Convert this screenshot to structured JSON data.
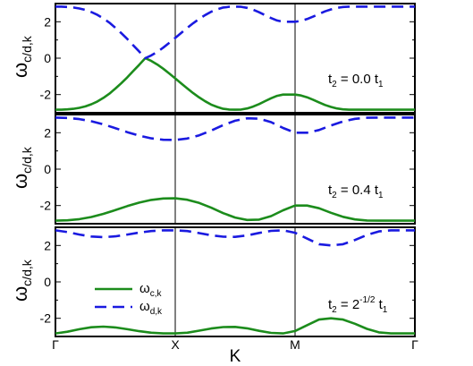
{
  "chart_data": [
    {
      "type": "line",
      "panel": "top",
      "ylabel": {
        "main": "ω",
        "sub": "c/d,k"
      },
      "annotation": {
        "lead": "t",
        "lead_sub": "2",
        "mid": " = 0.0 t",
        "tail_sub": "1",
        "tail_sup": ""
      },
      "ylim": [
        -2.9,
        2.9
      ],
      "yticks": [
        -2,
        0,
        2
      ],
      "xtick_labels": [
        "Γ",
        "X",
        "M",
        "Γ"
      ],
      "series": [
        {
          "color": "#1c8c1c",
          "dash": "solid",
          "x": [
            0,
            0.05,
            0.1,
            0.15,
            0.2,
            0.25,
            0.3,
            0.35,
            0.4,
            0.45,
            0.5,
            0.55,
            0.6,
            0.65,
            0.7,
            0.75,
            0.8,
            0.85,
            0.9,
            0.95,
            1.0,
            1.05,
            1.1,
            1.15,
            1.2,
            1.25,
            1.3,
            1.35,
            1.4,
            1.45,
            1.5,
            1.55,
            1.6,
            1.65,
            1.7,
            1.75,
            1.8,
            1.85,
            1.9,
            1.95,
            2.0,
            2.05,
            2.1,
            2.15,
            2.2,
            2.25,
            2.3,
            2.35,
            2.4,
            2.45,
            2.5,
            2.55,
            2.6,
            2.65,
            2.7,
            2.75,
            2.8,
            2.85,
            2.9,
            2.95,
            3.0
          ],
          "y": [
            -2.83,
            -2.83,
            -2.81,
            -2.78,
            -2.73,
            -2.65,
            -2.53,
            -2.38,
            -2.18,
            -1.95,
            -1.67,
            -1.37,
            -1.05,
            -0.7,
            -0.36,
            0,
            -0.15,
            -0.35,
            -0.58,
            -0.84,
            -1.11,
            -1.39,
            -1.66,
            -1.92,
            -2.16,
            -2.37,
            -2.55,
            -2.68,
            -2.78,
            -2.82,
            -2.83,
            -2.82,
            -2.76,
            -2.66,
            -2.52,
            -2.36,
            -2.2,
            -2.07,
            -2.0,
            -2.0,
            -2.0,
            -2.05,
            -2.15,
            -2.28,
            -2.43,
            -2.57,
            -2.68,
            -2.76,
            -2.81,
            -2.83,
            -2.83,
            -2.83,
            -2.83,
            -2.83,
            -2.83,
            -2.83,
            -2.83,
            -2.83,
            -2.83,
            -2.83,
            -2.83
          ]
        },
        {
          "color": "#1a1ae0",
          "dash": "dashed",
          "x": [
            0,
            0.05,
            0.1,
            0.15,
            0.2,
            0.25,
            0.3,
            0.35,
            0.4,
            0.45,
            0.5,
            0.55,
            0.6,
            0.65,
            0.7,
            0.75,
            0.8,
            0.85,
            0.9,
            0.95,
            1.0,
            1.05,
            1.1,
            1.15,
            1.2,
            1.25,
            1.3,
            1.35,
            1.4,
            1.45,
            1.5,
            1.55,
            1.6,
            1.65,
            1.7,
            1.75,
            1.8,
            1.85,
            1.9,
            1.95,
            2.0,
            2.05,
            2.1,
            2.15,
            2.2,
            2.25,
            2.3,
            2.35,
            2.4,
            2.45,
            2.5,
            2.55,
            2.6,
            2.65,
            2.7,
            2.75,
            2.8,
            2.85,
            2.9,
            2.95,
            3.0
          ],
          "y": [
            2.83,
            2.83,
            2.81,
            2.78,
            2.73,
            2.65,
            2.53,
            2.38,
            2.18,
            1.95,
            1.67,
            1.37,
            1.05,
            0.7,
            0.36,
            0,
            0.15,
            0.35,
            0.58,
            0.84,
            1.11,
            1.39,
            1.66,
            1.92,
            2.16,
            2.37,
            2.55,
            2.68,
            2.78,
            2.82,
            2.83,
            2.82,
            2.76,
            2.66,
            2.52,
            2.36,
            2.2,
            2.07,
            2.0,
            2.0,
            2.0,
            2.05,
            2.15,
            2.28,
            2.43,
            2.57,
            2.68,
            2.76,
            2.81,
            2.83,
            2.83,
            2.83,
            2.83,
            2.83,
            2.83,
            2.83,
            2.83,
            2.83,
            2.83,
            2.83,
            2.83
          ]
        }
      ]
    },
    {
      "type": "line",
      "panel": "middle",
      "ylabel": {
        "main": "ω",
        "sub": "c/d,k"
      },
      "annotation": {
        "lead": "t",
        "lead_sub": "2",
        "mid": " = 0.4 t",
        "tail_sub": "1",
        "tail_sup": ""
      },
      "ylim": [
        -2.9,
        2.9
      ],
      "yticks": [
        -2,
        0,
        2
      ],
      "xtick_labels": [
        "Γ",
        "X",
        "M",
        "Γ"
      ],
      "series": [
        {
          "color": "#1c8c1c",
          "dash": "solid",
          "x": [
            0,
            0.1,
            0.2,
            0.3,
            0.4,
            0.5,
            0.6,
            0.7,
            0.8,
            0.9,
            1.0,
            1.1,
            1.2,
            1.3,
            1.4,
            1.5,
            1.6,
            1.7,
            1.8,
            1.9,
            2.0,
            2.1,
            2.2,
            2.3,
            2.4,
            2.5,
            2.6,
            2.7,
            2.8,
            2.9,
            3.0
          ],
          "y": [
            -2.83,
            -2.81,
            -2.75,
            -2.63,
            -2.46,
            -2.25,
            -2.03,
            -1.84,
            -1.69,
            -1.61,
            -1.6,
            -1.68,
            -1.86,
            -2.12,
            -2.42,
            -2.66,
            -2.79,
            -2.77,
            -2.58,
            -2.26,
            -2.0,
            -2.0,
            -2.15,
            -2.4,
            -2.62,
            -2.76,
            -2.82,
            -2.83,
            -2.83,
            -2.83,
            -2.83
          ]
        },
        {
          "color": "#1a1ae0",
          "dash": "dashed",
          "x": [
            0,
            0.1,
            0.2,
            0.3,
            0.4,
            0.5,
            0.6,
            0.7,
            0.8,
            0.9,
            1.0,
            1.1,
            1.2,
            1.3,
            1.4,
            1.5,
            1.6,
            1.7,
            1.8,
            1.9,
            2.0,
            2.1,
            2.2,
            2.3,
            2.4,
            2.5,
            2.6,
            2.7,
            2.8,
            2.9,
            3.0
          ],
          "y": [
            2.83,
            2.81,
            2.75,
            2.63,
            2.46,
            2.25,
            2.03,
            1.84,
            1.69,
            1.61,
            1.6,
            1.68,
            1.86,
            2.12,
            2.42,
            2.66,
            2.79,
            2.77,
            2.58,
            2.26,
            2.0,
            2.0,
            2.15,
            2.4,
            2.62,
            2.76,
            2.82,
            2.83,
            2.83,
            2.83,
            2.83
          ]
        }
      ]
    },
    {
      "type": "line",
      "panel": "bottom",
      "ylabel": {
        "main": "ω",
        "sub": "c/d,k"
      },
      "annotation": {
        "lead": "t",
        "lead_sub": "2",
        "mid": " = 2",
        "tail_sub": "1",
        "tail_sup": "-1/2",
        "mid2": " t"
      },
      "ylim": [
        -2.9,
        2.9
      ],
      "yticks": [
        -2,
        0,
        2
      ],
      "xtick_labels": [
        "Γ",
        "X",
        "M",
        "Γ"
      ],
      "legend": {
        "position": "lower-left",
        "entries": [
          {
            "main": "ω",
            "sub": "c,k",
            "color": "#1c8c1c",
            "dash": "solid"
          },
          {
            "main": "ω",
            "sub": "d,k",
            "color": "#1a1ae0",
            "dash": "dashed"
          }
        ]
      },
      "series": [
        {
          "color": "#1c8c1c",
          "dash": "solid",
          "x": [
            0,
            0.1,
            0.2,
            0.3,
            0.4,
            0.5,
            0.6,
            0.7,
            0.8,
            0.9,
            1.0,
            1.1,
            1.2,
            1.3,
            1.4,
            1.5,
            1.6,
            1.7,
            1.8,
            1.9,
            2.0,
            2.1,
            2.2,
            2.3,
            2.4,
            2.5,
            2.6,
            2.7,
            2.8,
            2.9,
            3.0
          ],
          "y": [
            -2.83,
            -2.74,
            -2.6,
            -2.49,
            -2.46,
            -2.5,
            -2.6,
            -2.71,
            -2.79,
            -2.83,
            -2.83,
            -2.79,
            -2.68,
            -2.56,
            -2.48,
            -2.47,
            -2.55,
            -2.69,
            -2.8,
            -2.83,
            -2.7,
            -2.38,
            -2.07,
            -2.0,
            -2.07,
            -2.3,
            -2.58,
            -2.77,
            -2.83,
            -2.83,
            -2.83
          ]
        },
        {
          "color": "#1a1ae0",
          "dash": "dashed",
          "x": [
            0,
            0.1,
            0.2,
            0.3,
            0.4,
            0.5,
            0.6,
            0.7,
            0.8,
            0.9,
            1.0,
            1.1,
            1.2,
            1.3,
            1.4,
            1.5,
            1.6,
            1.7,
            1.8,
            1.9,
            2.0,
            2.1,
            2.2,
            2.3,
            2.4,
            2.5,
            2.6,
            2.7,
            2.8,
            2.9,
            3.0
          ],
          "y": [
            2.83,
            2.74,
            2.6,
            2.49,
            2.46,
            2.5,
            2.6,
            2.71,
            2.79,
            2.83,
            2.83,
            2.79,
            2.68,
            2.56,
            2.48,
            2.47,
            2.55,
            2.69,
            2.8,
            2.83,
            2.7,
            2.38,
            2.07,
            2.0,
            2.07,
            2.3,
            2.58,
            2.77,
            2.83,
            2.83,
            2.83
          ]
        }
      ]
    }
  ],
  "xlabel": "K"
}
